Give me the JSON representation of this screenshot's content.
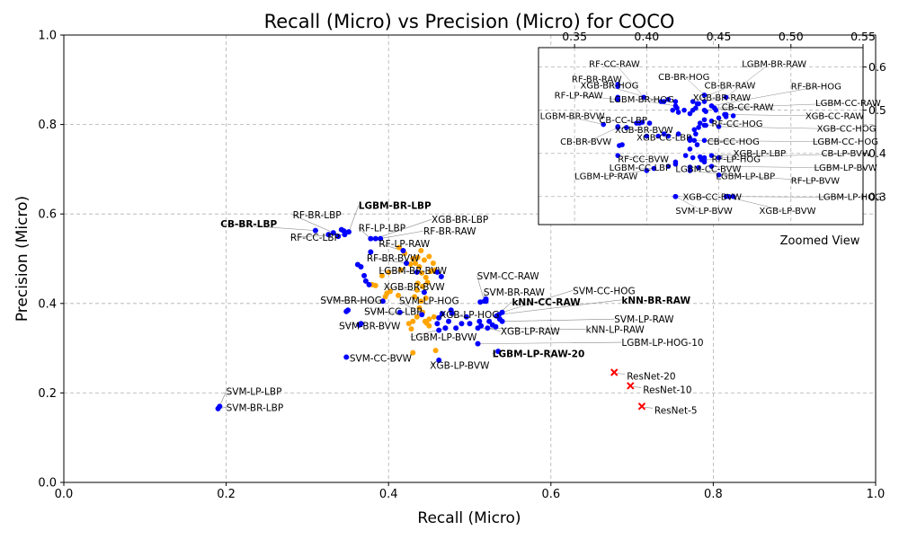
{
  "chart_data": {
    "type": "scatter",
    "title": "Recall (Micro) vs Precision (Micro) for COCO",
    "xlabel": "Recall (Micro)",
    "ylabel": "Precision (Micro)",
    "xlim": [
      0,
      1
    ],
    "ylim": [
      0,
      1
    ],
    "xticks": [
      "0.0",
      "0.2",
      "0.4",
      "0.6",
      "0.8",
      "1.0"
    ],
    "yticks": [
      "0.0",
      "0.2",
      "0.4",
      "0.6",
      "0.8",
      "1.0"
    ],
    "grid": true,
    "colors": {
      "main_points": "#0000ff",
      "secondary_points": "#ffa500",
      "resnet": "#ff0000",
      "leader": "#888888"
    },
    "labeled_points": [
      {
        "label": "LGBM-BR-LBP",
        "bold": true,
        "x": 0.351,
        "y": 0.56,
        "tx": 0.363,
        "ty": 0.611
      },
      {
        "label": "CB-BR-LBP",
        "bold": true,
        "x": 0.31,
        "y": 0.563,
        "tx": 0.193,
        "ty": 0.57
      },
      {
        "label": "RF-BR-LBP",
        "x": 0.332,
        "y": 0.558,
        "tx": 0.282,
        "ty": 0.59
      },
      {
        "label": "RF-CC-LBP",
        "x": 0.346,
        "y": 0.554,
        "tx": 0.279,
        "ty": 0.54
      },
      {
        "label": "RF-LP-LBP",
        "x": 0.378,
        "y": 0.545,
        "tx": 0.363,
        "ty": 0.561
      },
      {
        "label": "XGB-BR-LBP",
        "x": 0.384,
        "y": 0.545,
        "tx": 0.453,
        "ty": 0.58
      },
      {
        "label": "RF-BR-RAW",
        "x": 0.39,
        "y": 0.545,
        "tx": 0.443,
        "ty": 0.554
      },
      {
        "label": "RF-LP-RAW",
        "x": 0.418,
        "y": 0.518,
        "tx": 0.388,
        "ty": 0.526
      },
      {
        "label": "RF-BR-BVW",
        "x": 0.422,
        "y": 0.49,
        "tx": 0.373,
        "ty": 0.494
      },
      {
        "label": "LGBM-BR-BVW",
        "x": 0.435,
        "y": 0.47,
        "tx": 0.388,
        "ty": 0.466
      },
      {
        "label": "XGB-BR-BVW",
        "x": 0.444,
        "y": 0.425,
        "tx": 0.394,
        "ty": 0.43
      },
      {
        "label": "SVM-CC-RAW",
        "x": 0.518,
        "y": 0.405,
        "tx": 0.509,
        "ty": 0.454
      },
      {
        "label": "SVM-BR-RAW",
        "x": 0.52,
        "y": 0.405,
        "tx": 0.517,
        "ty": 0.418
      },
      {
        "label": "SVM-CC-HOG",
        "x": 0.54,
        "y": 0.38,
        "tx": 0.627,
        "ty": 0.421
      },
      {
        "label": "kNN-BR-RAW",
        "bold": true,
        "x": 0.536,
        "y": 0.375,
        "tx": 0.687,
        "ty": 0.4
      },
      {
        "label": "kNN-CC-RAW",
        "bold": true,
        "x": 0.533,
        "y": 0.372,
        "tx": 0.552,
        "ty": 0.396
      },
      {
        "label": "SVM-BR-HOG",
        "x": 0.393,
        "y": 0.405,
        "tx": 0.316,
        "ty": 0.4
      },
      {
        "label": "SVM-LP-HOG",
        "x": 0.441,
        "y": 0.375,
        "tx": 0.413,
        "ty": 0.399
      },
      {
        "label": "SVM-CC-LBP",
        "x": 0.414,
        "y": 0.38,
        "tx": 0.37,
        "ty": 0.374
      },
      {
        "label": "XGB-LP-HOG",
        "x": 0.496,
        "y": 0.37,
        "tx": 0.463,
        "ty": 0.367
      },
      {
        "label": "SVM-BR-BVW",
        "x": 0.366,
        "y": 0.355,
        "tx": 0.339,
        "ty": 0.342
      },
      {
        "label": "SVM-LP-RAW",
        "x": 0.54,
        "y": 0.36,
        "tx": 0.678,
        "ty": 0.357
      },
      {
        "label": "XGB-LP-RAW",
        "x": 0.522,
        "y": 0.345,
        "tx": 0.538,
        "ty": 0.33
      },
      {
        "label": "kNN-LP-RAW",
        "x": 0.51,
        "y": 0.345,
        "tx": 0.643,
        "ty": 0.334
      },
      {
        "label": "LGBM-LP-BVW",
        "x": 0.47,
        "y": 0.345,
        "tx": 0.427,
        "ty": 0.317
      },
      {
        "label": "LGBM-LP-HOG-10",
        "x": 0.51,
        "y": 0.31,
        "tx": 0.687,
        "ty": 0.305
      },
      {
        "label": "LGBM-LP-RAW-20",
        "bold": true,
        "x": 0.535,
        "y": 0.293,
        "tx": 0.528,
        "ty": 0.28
      },
      {
        "label": "SVM-CC-BVW",
        "x": 0.348,
        "y": 0.28,
        "tx": 0.352,
        "ty": 0.27
      },
      {
        "label": "XGB-LP-BVW",
        "x": 0.462,
        "y": 0.273,
        "tx": 0.451,
        "ty": 0.254
      },
      {
        "label": "SVM-LP-LBP",
        "x": 0.192,
        "y": 0.17,
        "tx": 0.2,
        "ty": 0.196
      },
      {
        "label": "SVM-BR-LBP",
        "x": 0.19,
        "y": 0.165,
        "tx": 0.2,
        "ty": 0.16
      }
    ],
    "extra_blue_points": [
      [
        0.342,
        0.565
      ],
      [
        0.345,
        0.562
      ],
      [
        0.326,
        0.554
      ],
      [
        0.338,
        0.55
      ],
      [
        0.378,
        0.515
      ],
      [
        0.362,
        0.487
      ],
      [
        0.366,
        0.482
      ],
      [
        0.37,
        0.462
      ],
      [
        0.372,
        0.45
      ],
      [
        0.376,
        0.442
      ],
      [
        0.46,
        0.47
      ],
      [
        0.465,
        0.46
      ],
      [
        0.35,
        0.385
      ],
      [
        0.348,
        0.382
      ],
      [
        0.364,
        0.352
      ],
      [
        0.477,
        0.385
      ],
      [
        0.478,
        0.378
      ],
      [
        0.466,
        0.377
      ],
      [
        0.462,
        0.368
      ],
      [
        0.474,
        0.36
      ],
      [
        0.46,
        0.355
      ],
      [
        0.483,
        0.345
      ],
      [
        0.47,
        0.345
      ],
      [
        0.49,
        0.355
      ],
      [
        0.5,
        0.355
      ],
      [
        0.462,
        0.34
      ],
      [
        0.512,
        0.36
      ],
      [
        0.524,
        0.36
      ],
      [
        0.528,
        0.352
      ],
      [
        0.532,
        0.348
      ],
      [
        0.514,
        0.35
      ],
      [
        0.52,
        0.41
      ],
      [
        0.513,
        0.403
      ],
      [
        0.537,
        0.365
      ]
    ],
    "orange_points": [
      [
        0.43,
        0.5
      ],
      [
        0.433,
        0.49
      ],
      [
        0.436,
        0.503
      ],
      [
        0.44,
        0.518
      ],
      [
        0.444,
        0.497
      ],
      [
        0.438,
        0.482
      ],
      [
        0.441,
        0.468
      ],
      [
        0.446,
        0.458
      ],
      [
        0.452,
        0.472
      ],
      [
        0.448,
        0.447
      ],
      [
        0.442,
        0.438
      ],
      [
        0.435,
        0.43
      ],
      [
        0.436,
        0.445
      ],
      [
        0.45,
        0.505
      ],
      [
        0.455,
        0.49
      ],
      [
        0.457,
        0.475
      ],
      [
        0.413,
        0.525
      ],
      [
        0.42,
        0.512
      ],
      [
        0.427,
        0.488
      ],
      [
        0.415,
        0.475
      ],
      [
        0.4,
        0.47
      ],
      [
        0.392,
        0.462
      ],
      [
        0.384,
        0.44
      ],
      [
        0.38,
        0.442
      ],
      [
        0.398,
        0.423
      ],
      [
        0.396,
        0.415
      ],
      [
        0.402,
        0.427
      ],
      [
        0.412,
        0.418
      ],
      [
        0.44,
        0.405
      ],
      [
        0.438,
        0.39
      ],
      [
        0.442,
        0.38
      ],
      [
        0.435,
        0.37
      ],
      [
        0.43,
        0.36
      ],
      [
        0.445,
        0.36
      ],
      [
        0.45,
        0.365
      ],
      [
        0.456,
        0.37
      ],
      [
        0.447,
        0.356
      ],
      [
        0.425,
        0.355
      ],
      [
        0.428,
        0.343
      ],
      [
        0.45,
        0.35
      ],
      [
        0.43,
        0.29
      ],
      [
        0.458,
        0.295
      ],
      [
        0.432,
        0.415
      ],
      [
        0.446,
        0.412
      ]
    ],
    "resnet_points": [
      {
        "label": "ResNet-20",
        "x": 0.678,
        "y": 0.246
      },
      {
        "label": "ResNet-10",
        "x": 0.698,
        "y": 0.216
      },
      {
        "label": "ResNet-5",
        "x": 0.712,
        "y": 0.17
      }
    ],
    "inset": {
      "caption": "Zoomed View",
      "xlim": [
        0.325,
        0.55
      ],
      "ylim": [
        0.235,
        0.645
      ],
      "xticks": [
        "0.35",
        "0.40",
        "0.45",
        "0.50",
        "0.55"
      ],
      "xtick_values": [
        0.35,
        0.4,
        0.45,
        0.5,
        0.55
      ],
      "yticks": [
        "0.3",
        "0.4",
        "0.5",
        "0.6"
      ],
      "ytick_values": [
        0.3,
        0.4,
        0.5,
        0.6
      ],
      "labeled_points": [
        {
          "label": "RF-CC-RAW",
          "x": 0.398,
          "y": 0.53,
          "tx": 0.36,
          "ty": 0.6
        },
        {
          "label": "LGBM-BR-RAW",
          "x": 0.455,
          "y": 0.53,
          "tx": 0.466,
          "ty": 0.6
        },
        {
          "label": "CB-BR-HOG",
          "x": 0.44,
          "y": 0.535,
          "tx": 0.408,
          "ty": 0.57
        },
        {
          "label": "RF-BR-RAW",
          "x": 0.38,
          "y": 0.555,
          "tx": 0.348,
          "ty": 0.565
        },
        {
          "label": "XGB-BR-HOG",
          "x": 0.41,
          "y": 0.52,
          "tx": 0.354,
          "ty": 0.55
        },
        {
          "label": "CB-BR-RAW",
          "x": 0.432,
          "y": 0.52,
          "tx": 0.44,
          "ty": 0.55
        },
        {
          "label": "RF-LP-RAW",
          "x": 0.38,
          "y": 0.525,
          "tx": 0.336,
          "ty": 0.527
        },
        {
          "label": "LGBM-BR-HOG",
          "x": 0.42,
          "y": 0.51,
          "tx": 0.374,
          "ty": 0.518
        },
        {
          "label": "XGB-BR-RAW",
          "x": 0.435,
          "y": 0.515,
          "tx": 0.432,
          "ty": 0.522
        },
        {
          "label": "RF-BR-HOG",
          "x": 0.445,
          "y": 0.51,
          "tx": 0.5,
          "ty": 0.548
        },
        {
          "label": "LGBM-CC-RAW",
          "x": 0.447,
          "y": 0.505,
          "tx": 0.517,
          "ty": 0.51
        },
        {
          "label": "CB-CC-RAW",
          "x": 0.44,
          "y": 0.5,
          "tx": 0.452,
          "ty": 0.5
        },
        {
          "label": "LGBM-BR-BVW",
          "x": 0.37,
          "y": 0.467,
          "tx": 0.326,
          "ty": 0.48
        },
        {
          "label": "XGB-CC-RAW",
          "x": 0.455,
          "y": 0.49,
          "tx": 0.51,
          "ty": 0.48
        },
        {
          "label": "CB-CC-LBP",
          "x": 0.395,
          "y": 0.47,
          "tx": 0.367,
          "ty": 0.47
        },
        {
          "label": "RF-CC-HOG",
          "x": 0.44,
          "y": 0.465,
          "tx": 0.445,
          "ty": 0.462
        },
        {
          "label": "XGB-CC-HOG",
          "x": 0.45,
          "y": 0.462,
          "tx": 0.518,
          "ty": 0.45
        },
        {
          "label": "XGB-BR-BVW",
          "x": 0.38,
          "y": 0.46,
          "tx": 0.378,
          "ty": 0.447
        },
        {
          "label": "CB-BR-BVW",
          "x": 0.38,
          "y": 0.46,
          "tx": 0.34,
          "ty": 0.42
        },
        {
          "label": "XGB-CC-LBP",
          "x": 0.415,
          "y": 0.44,
          "tx": 0.393,
          "ty": 0.43
        },
        {
          "label": "CB-CC-HOG",
          "x": 0.43,
          "y": 0.43,
          "tx": 0.442,
          "ty": 0.42
        },
        {
          "label": "LGBM-CC-HOG",
          "x": 0.44,
          "y": 0.43,
          "tx": 0.515,
          "ty": 0.42
        },
        {
          "label": "XGB-LP-LBP",
          "x": 0.445,
          "y": 0.395,
          "tx": 0.46,
          "ty": 0.393
        },
        {
          "label": "CB-LP-BVW",
          "x": 0.45,
          "y": 0.39,
          "tx": 0.521,
          "ty": 0.393
        },
        {
          "label": "RF-CC-BVW",
          "x": 0.38,
          "y": 0.395,
          "tx": 0.38,
          "ty": 0.38
        },
        {
          "label": "RF-LP-HOG",
          "x": 0.44,
          "y": 0.385,
          "tx": 0.445,
          "ty": 0.38
        },
        {
          "label": "LGBM-LP-BVW",
          "x": 0.445,
          "y": 0.37,
          "tx": 0.516,
          "ty": 0.36
        },
        {
          "label": "LGBM-CC-LBP",
          "x": 0.405,
          "y": 0.365,
          "tx": 0.374,
          "ty": 0.36
        },
        {
          "label": "LGBM-CC-BVW",
          "x": 0.43,
          "y": 0.368,
          "tx": 0.42,
          "ty": 0.357
        },
        {
          "label": "LGBM-LP-RAW",
          "x": 0.4,
          "y": 0.36,
          "tx": 0.35,
          "ty": 0.34
        },
        {
          "label": "LGBM-LP-LBP",
          "x": 0.43,
          "y": 0.36,
          "tx": 0.448,
          "ty": 0.34
        },
        {
          "label": "RF-LP-BVW",
          "x": 0.45,
          "y": 0.35,
          "tx": 0.5,
          "ty": 0.33
        },
        {
          "label": "XGB-CC-BVW",
          "x": 0.42,
          "y": 0.3,
          "tx": 0.425,
          "ty": 0.292
        },
        {
          "label": "LGBM-LP-HOG",
          "x": 0.46,
          "y": 0.3,
          "tx": 0.519,
          "ty": 0.292
        },
        {
          "label": "SVM-LP-BVW",
          "x": 0.42,
          "y": 0.3,
          "tx": 0.42,
          "ty": 0.26
        },
        {
          "label": "XGB-LP-BVW",
          "x": 0.455,
          "y": 0.3,
          "tx": 0.478,
          "ty": 0.26
        }
      ],
      "blue_points": [
        [
          0.38,
          0.56
        ],
        [
          0.38,
          0.53
        ],
        [
          0.412,
          0.52
        ],
        [
          0.415,
          0.525
        ],
        [
          0.42,
          0.52
        ],
        [
          0.421,
          0.505
        ],
        [
          0.418,
          0.5
        ],
        [
          0.422,
          0.495
        ],
        [
          0.426,
          0.5
        ],
        [
          0.43,
          0.492
        ],
        [
          0.432,
          0.5
        ],
        [
          0.434,
          0.505
        ],
        [
          0.436,
          0.515
        ],
        [
          0.44,
          0.52
        ],
        [
          0.441,
          0.497
        ],
        [
          0.445,
          0.51
        ],
        [
          0.448,
          0.5
        ],
        [
          0.45,
          0.482
        ],
        [
          0.454,
          0.49
        ],
        [
          0.46,
          0.487
        ],
        [
          0.455,
          0.485
        ],
        [
          0.44,
          0.478
        ],
        [
          0.441,
          0.465
        ],
        [
          0.433,
          0.455
        ],
        [
          0.437,
          0.47
        ],
        [
          0.436,
          0.46
        ],
        [
          0.434,
          0.445
        ],
        [
          0.433,
          0.43
        ],
        [
          0.435,
          0.42
        ],
        [
          0.43,
          0.41
        ],
        [
          0.427,
          0.395
        ],
        [
          0.432,
          0.39
        ],
        [
          0.437,
          0.392
        ],
        [
          0.44,
          0.39
        ],
        [
          0.438,
          0.385
        ],
        [
          0.44,
          0.38
        ],
        [
          0.42,
          0.38
        ],
        [
          0.42,
          0.375
        ],
        [
          0.415,
          0.37
        ],
        [
          0.436,
          0.367
        ],
        [
          0.393,
          0.47
        ],
        [
          0.397,
          0.472
        ],
        [
          0.402,
          0.47
        ],
        [
          0.386,
          0.46
        ],
        [
          0.38,
          0.462
        ],
        [
          0.383,
          0.42
        ],
        [
          0.381,
          0.418
        ],
        [
          0.4,
          0.44
        ],
        [
          0.408,
          0.44
        ],
        [
          0.412,
          0.445
        ],
        [
          0.422,
          0.445
        ],
        [
          0.42,
          0.3
        ],
        [
          0.457,
          0.3
        ],
        [
          0.445,
          0.475
        ],
        [
          0.43,
          0.435
        ]
      ]
    }
  }
}
